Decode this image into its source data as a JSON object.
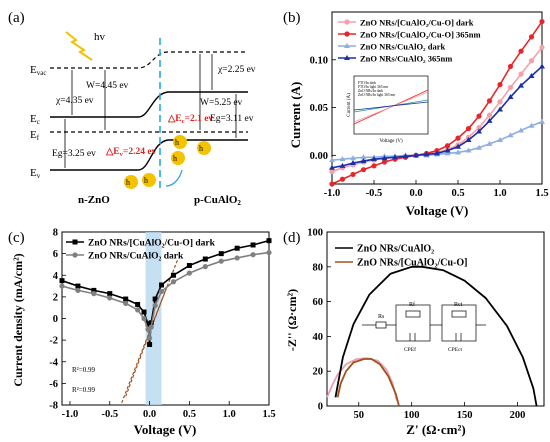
{
  "panels": {
    "a": {
      "label": "(a)",
      "hv": "hv",
      "levels": {
        "evac": "E",
        "evac_sub": "vac",
        "ec": "E",
        "ec_sub": "c",
        "ef": "E",
        "ef_sub": "f",
        "ev": "E",
        "ev_sub": "v"
      },
      "texts": {
        "w1": "W=4.45 ev",
        "chi1": "χ=4.35 ev",
        "eg1": "Eg=3.25 ev",
        "chi2": "χ=2.25 ev",
        "w2": "W=5.25 ev",
        "eg2": "Eg=3.11 ev",
        "dec": "△E",
        "dec_sub": "c",
        "dec_val": "=2.1 ev",
        "dev": "△E",
        "dev_sub": "v",
        "dev_val": "=2.24 ev",
        "hole": "h",
        "hole_sup": "+",
        "n_label": "n-ZnO",
        "p_label": "p-CuAlO",
        "p_sub": "2"
      }
    },
    "b": {
      "label": "(b)",
      "legend": [
        "ZnO NRs/[CuAlO₂/Cu-O] dark",
        "ZnO NRs/[CuAlO₂/Cu-O] 365nm",
        "ZnO NRs/CuAlO₂ dark",
        "ZnO NRs/CuAlO₂ 365nm"
      ],
      "inset_legend": [
        "FTO/In dark",
        "FTO/In light 365 nm",
        "ZnO NRs/In dark",
        "ZnO NRs/In light 365 nm"
      ],
      "inset_xlabel": "Voltage (V)",
      "inset_ylabel": "Current (A)"
    },
    "c": {
      "label": "(c)",
      "r2_a": "R²=0.99",
      "r2_b": "R²=0.99"
    },
    "d": {
      "label": "(d)",
      "circuit": {
        "rs": "Rs",
        "rf": "Rf",
        "rct": "Rct",
        "cpef": "CPEf",
        "cpect": "CPEct"
      }
    }
  },
  "colors": {
    "pink": "#f5a0a8",
    "red": "#e8262a",
    "lightblue": "#8eaee0",
    "navy": "#1a2ea8",
    "black": "#000000",
    "gray": "#808080",
    "brown": "#a0501e",
    "pinkline": "#e8a0b0",
    "cyan": "#2aa8e0"
  },
  "chart_data": [
    {
      "type": "line",
      "panel": "b",
      "xlabel": "Voltage (V)",
      "ylabel": "Current (A)",
      "xlim": [
        -1.0,
        1.5
      ],
      "ylim": [
        -0.03,
        0.15
      ],
      "xticks": [
        -1.0,
        -0.5,
        0.0,
        0.5,
        1.0,
        1.5
      ],
      "yticks": [
        0.0,
        0.05,
        0.1
      ],
      "x": [
        -1.0,
        -0.875,
        -0.75,
        -0.625,
        -0.5,
        -0.375,
        -0.25,
        -0.125,
        0.0,
        0.125,
        0.25,
        0.375,
        0.5,
        0.625,
        0.75,
        0.875,
        1.0,
        1.125,
        1.25,
        1.375,
        1.5
      ],
      "series": [
        {
          "name": "ZnO NRs/[CuAlO₂/Cu-O] dark",
          "color": "#f5a0a8",
          "marker": "circle",
          "values": [
            -0.017,
            -0.013,
            -0.01,
            -0.007,
            -0.005,
            -0.003,
            -0.002,
            -0.001,
            0.0,
            0.001,
            0.003,
            0.006,
            0.011,
            0.019,
            0.029,
            0.042,
            0.056,
            0.071,
            0.085,
            0.099,
            0.113
          ]
        },
        {
          "name": "ZnO NRs/[CuAlO₂/Cu-O] 365nm",
          "color": "#e8262a",
          "marker": "circle",
          "values": [
            -0.03,
            -0.025,
            -0.02,
            -0.015,
            -0.011,
            -0.007,
            -0.004,
            -0.002,
            0.0,
            0.002,
            0.005,
            0.01,
            0.018,
            0.028,
            0.041,
            0.057,
            0.074,
            0.093,
            0.109,
            0.124,
            0.14
          ]
        },
        {
          "name": "ZnO NRs/CuAlO₂ dark",
          "color": "#8eaee0",
          "marker": "triangle",
          "values": [
            -0.005,
            -0.004,
            -0.003,
            -0.002,
            -0.002,
            -0.001,
            -0.001,
            0.0,
            0.0,
            0.0,
            0.001,
            0.002,
            0.003,
            0.005,
            0.008,
            0.012,
            0.016,
            0.021,
            0.026,
            0.031,
            0.035
          ]
        },
        {
          "name": "ZnO NRs/CuAlO₂ 365nm",
          "color": "#1a2ea8",
          "marker": "triangle",
          "values": [
            -0.013,
            -0.011,
            -0.008,
            -0.006,
            -0.004,
            -0.003,
            -0.002,
            -0.001,
            0.0,
            0.001,
            0.002,
            0.005,
            0.009,
            0.016,
            0.025,
            0.036,
            0.048,
            0.061,
            0.073,
            0.083,
            0.093
          ]
        }
      ]
    },
    {
      "type": "line",
      "panel": "c",
      "xlabel": "Voltage (V)",
      "ylabel": "Current density (mA/cm²)",
      "xlim": [
        -1.1,
        1.5
      ],
      "ylim": [
        -8,
        8
      ],
      "xticks": [
        -1.0,
        -0.5,
        0.0,
        0.5,
        1.0,
        1.5
      ],
      "yticks": [
        -8,
        -6,
        -4,
        -2,
        0,
        2,
        4,
        6,
        8
      ],
      "series": [
        {
          "name": "ZnO NRs/[CuAlO₂/Cu-O] dark",
          "color": "#000000",
          "marker": "square",
          "x": [
            -1.1,
            -0.9,
            -0.7,
            -0.5,
            -0.3,
            -0.15,
            -0.07,
            -0.02,
            0.0,
            0.02,
            0.07,
            0.15,
            0.3,
            0.5,
            0.7,
            0.9,
            1.1,
            1.3,
            1.5
          ],
          "values": [
            3.5,
            3.0,
            2.6,
            2.3,
            1.8,
            1.3,
            0.6,
            -0.5,
            -2.4,
            -0.4,
            1.8,
            3.1,
            4.0,
            4.9,
            5.5,
            6.0,
            6.5,
            6.8,
            7.2
          ]
        },
        {
          "name": "ZnO NRs/CuAlO₂ dark",
          "color": "#808080",
          "marker": "circle",
          "x": [
            -1.1,
            -0.9,
            -0.7,
            -0.5,
            -0.3,
            -0.15,
            -0.07,
            -0.02,
            0.0,
            0.02,
            0.07,
            0.15,
            0.3,
            0.5,
            0.7,
            0.9,
            1.1,
            1.3,
            1.5
          ],
          "values": [
            3.0,
            2.6,
            2.3,
            1.9,
            1.4,
            0.8,
            0.0,
            -1.0,
            -1.8,
            -0.8,
            1.2,
            2.5,
            3.4,
            4.2,
            4.8,
            5.3,
            5.6,
            5.9,
            6.1
          ]
        }
      ],
      "fit_lines": [
        {
          "label": "R²=0.99",
          "color": "#a0501e",
          "x": [
            -0.35,
            0.35
          ],
          "values": [
            -7.8,
            5.4
          ]
        },
        {
          "label": "R²=0.99",
          "color": "#a0501e",
          "x": [
            -0.3,
            0.2
          ],
          "values": [
            -7.2,
            2.6
          ]
        }
      ],
      "shaded": [
        {
          "x": [
            -0.05,
            0.15
          ],
          "color": "#b8d8f0"
        }
      ]
    },
    {
      "type": "line",
      "panel": "d",
      "xlabel": "Z' (Ω·cm²)",
      "ylabel": "-Z'' (Ω·cm²)",
      "xlim": [
        20,
        225
      ],
      "ylim": [
        0,
        100
      ],
      "xticks": [
        50,
        100,
        150,
        200
      ],
      "yticks": [
        0,
        20,
        40,
        60,
        80,
        100
      ],
      "series": [
        {
          "name": "ZnO NRs/CuAlO₂",
          "color": "#000000",
          "x": [
            28,
            35,
            45,
            60,
            80,
            100,
            110,
            130,
            150,
            170,
            190,
            205,
            215,
            218
          ],
          "values": [
            5,
            28,
            47,
            64,
            76,
            80,
            80,
            78,
            72,
            62,
            46,
            28,
            10,
            0
          ]
        },
        {
          "name": "ZnO NRs/[CuAlO₂/Cu-O]",
          "color": "#a0501e",
          "x": [
            30,
            33,
            38,
            45,
            55,
            62,
            70,
            78,
            85,
            88
          ],
          "values": [
            5,
            13,
            20,
            25,
            27,
            27,
            24,
            17,
            7,
            0
          ]
        },
        {
          "name": "",
          "color": "#e8a0b0",
          "x": [
            20,
            25,
            30,
            38,
            48,
            58,
            68,
            76,
            82,
            86
          ],
          "values": [
            5,
            12,
            18,
            24,
            27,
            27.5,
            26,
            21,
            13,
            3
          ]
        }
      ]
    }
  ]
}
